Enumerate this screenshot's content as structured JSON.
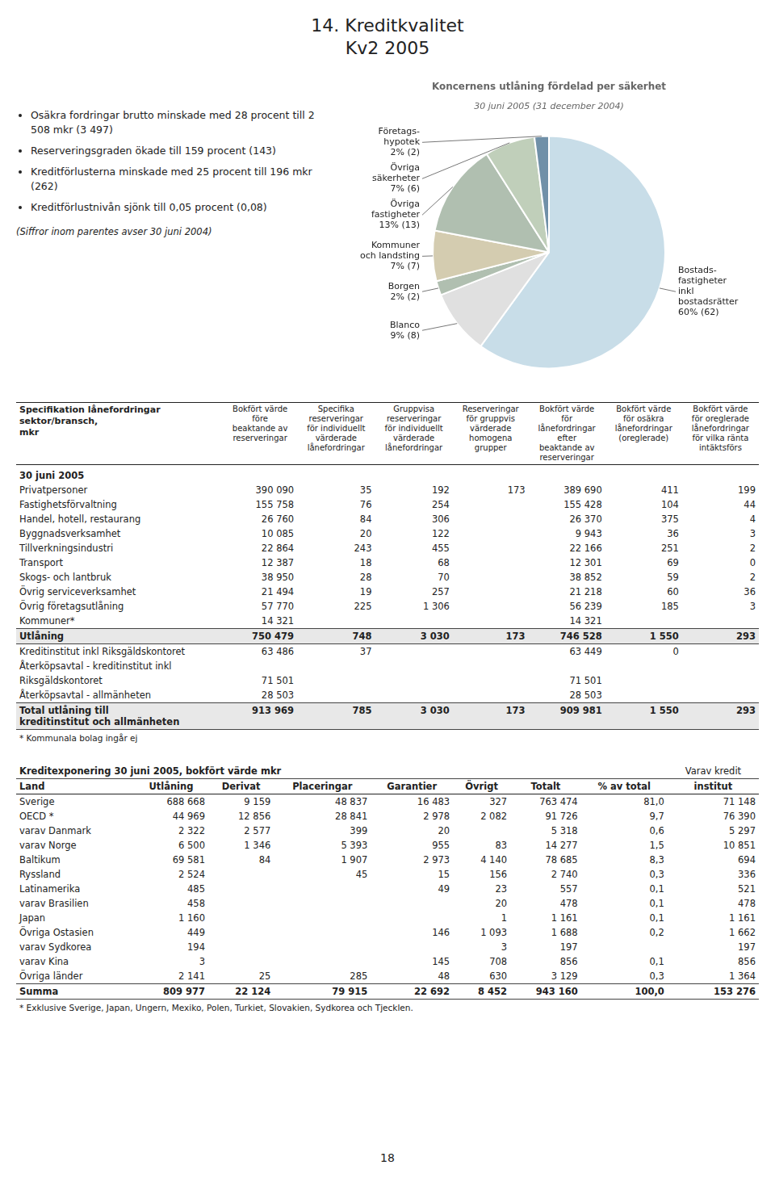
{
  "chart_data": {
    "type": "pie",
    "title": "Koncernens utlåning fördelad per säkerhet",
    "subtitle": "30 juni 2005 (31 december 2004)",
    "categories": [
      "Bostads-\nfastigheter\ninkl\nbostadsrätter",
      "Blanco",
      "Borgen",
      "Kommuner\noch landsting",
      "Övriga\nfastigheter",
      "Övriga\nsäkerheter",
      "Företags-\nhypotek"
    ],
    "values": [
      60,
      9,
      2,
      7,
      13,
      7,
      2
    ],
    "value_labels": [
      "60% (62)",
      "9% (8)",
      "2% (2)",
      "7% (7)",
      "13% (13)",
      "7% (6)",
      "2% (2)"
    ],
    "colors": [
      "#c8dde8",
      "#e0e0e0",
      "#b0bfb0",
      "#d4ccb0",
      "#b0bfb0",
      "#c0cfba",
      "#7090a8"
    ],
    "data_labels": true
  },
  "page": {
    "title": [
      "14. Kreditkvalitet",
      "Kv2 2005"
    ],
    "bullet_points": [
      "Osäkra fordringar brutto minskade med 28 procent till 2 508 mkr (3 497)",
      "Reserveringsgraden ökade till 159 procent (143)",
      "Kreditförlusterna minskade med 25 procent till 196 mkr (262)",
      "Kreditförlustnivån sjönk till 0,05 procent (0,08)"
    ],
    "footnote": "(Siffror inom parentes avser 30 juni 2004)",
    "table1": {
      "header_label": "Specifikation lånefordringar\nsektor/bransch,\nmkr",
      "headers": [
        "Bokfört värde\nföre\nbeaktande av\nreserveringar",
        "Specifika\nreserveringar\nför individuellt\nvärderade\nlånefordringar",
        "Gruppvisa\nreserveringar\nför individuellt\nvärderade\nlånefordringar",
        "Reserveringar\nför gruppvis\nvärderade\nhomogena\ngrupper",
        "Bokfört värde\nför\nlånefordringar\nefter\nbeaktande av\nreserveringar",
        "Bokfört värde\nför osäkra\nlånefordringar\n(oreglerade)",
        "Bokfört värde\nför oreglerade\nlånefordringar\nför vilka ränta\nintäktsförs"
      ],
      "section": "30 juni 2005",
      "rows": [
        [
          "Privatpersoner",
          "390 090",
          "35",
          "192",
          "173",
          "389 690",
          "411",
          "199"
        ],
        [
          "Fastighetsförvaltning",
          "155 758",
          "76",
          "254",
          "",
          "155 428",
          "104",
          "44"
        ],
        [
          "Handel, hotell, restaurang",
          "26 760",
          "84",
          "306",
          "",
          "26 370",
          "375",
          "4"
        ],
        [
          "Byggnadsverksamhet",
          "10 085",
          "20",
          "122",
          "",
          "9 943",
          "36",
          "3"
        ],
        [
          "Tillverkningsindustri",
          "22 864",
          "243",
          "455",
          "",
          "22 166",
          "251",
          "2"
        ],
        [
          "Transport",
          "12 387",
          "18",
          "68",
          "",
          "12 301",
          "69",
          "0"
        ],
        [
          "Skogs- och lantbruk",
          "38 950",
          "28",
          "70",
          "",
          "38 852",
          "59",
          "2"
        ],
        [
          "Övrig serviceverksamhet",
          "21 494",
          "19",
          "257",
          "",
          "21 218",
          "60",
          "36"
        ],
        [
          "Övrig företagsutlåning",
          "57 770",
          "225",
          "1 306",
          "",
          "56 239",
          "185",
          "3"
        ],
        [
          "Kommuner*",
          "14 321",
          "",
          "",
          "",
          "14 321",
          "",
          ""
        ]
      ],
      "total_row": [
        "Utlåning",
        "750 479",
        "748",
        "3 030",
        "173",
        "746 528",
        "1 550",
        "293"
      ],
      "rows2": [
        [
          "Kreditinstitut inkl Riksgäldskontoret",
          "63 486",
          "37",
          "",
          "",
          "63 449",
          "0",
          ""
        ],
        [
          "Återköpsavtal - kreditinstitut inkl",
          "",
          "",
          "",
          "",
          "",
          "",
          ""
        ],
        [
          "Riksgäldskontoret",
          "71 501",
          "",
          "",
          "",
          "71 501",
          "",
          ""
        ],
        [
          "Återköpsavtal - allmänheten",
          "28 503",
          "",
          "",
          "",
          "28 503",
          "",
          ""
        ]
      ],
      "total_row2_label": "Total utlåning till\nkreditinstitut och allmänheten",
      "total_row2": [
        "913 969",
        "785",
        "3 030",
        "173",
        "909 981",
        "1 550",
        "293"
      ],
      "footnote": "* Kommunala bolag ingår ej"
    },
    "table2": {
      "title": "Kreditexponering 30 juni 2005, bokfört värde mkr",
      "super_header": "Varav kredit",
      "headers": [
        "Land",
        "Utlåning",
        "Derivat",
        "Placeringar",
        "Garantier",
        "Övrigt",
        "Totalt",
        "% av total",
        "institut"
      ],
      "rows": [
        [
          "Sverige",
          "688 668",
          "9 159",
          "48 837",
          "16 483",
          "327",
          "763 474",
          "81,0",
          "71 148"
        ],
        [
          "OECD *",
          "44 969",
          "12 856",
          "28 841",
          "2 978",
          "2 082",
          "91 726",
          "9,7",
          "76 390"
        ],
        [
          "varav Danmark",
          "2 322",
          "2 577",
          "399",
          "20",
          "",
          "5 318",
          "0,6",
          "5 297"
        ],
        [
          "varav Norge",
          "6 500",
          "1 346",
          "5 393",
          "955",
          "83",
          "14 277",
          "1,5",
          "10 851"
        ],
        [
          "Baltikum",
          "69 581",
          "84",
          "1 907",
          "2 973",
          "4 140",
          "78 685",
          "8,3",
          "694"
        ],
        [
          "Ryssland",
          "2 524",
          "",
          "45",
          "15",
          "156",
          "2 740",
          "0,3",
          "336"
        ],
        [
          "Latinamerika",
          "485",
          "",
          "",
          "49",
          "23",
          "557",
          "0,1",
          "521"
        ],
        [
          "varav Brasilien",
          "458",
          "",
          "",
          "",
          "20",
          "478",
          "0,1",
          "478"
        ],
        [
          "Japan",
          "1 160",
          "",
          "",
          "",
          "1",
          "1 161",
          "0,1",
          "1 161"
        ],
        [
          "Övriga Ostasien",
          "449",
          "",
          "",
          "146",
          "1 093",
          "1 688",
          "0,2",
          "1 662"
        ],
        [
          "varav Sydkorea",
          "194",
          "",
          "",
          "",
          "3",
          "197",
          "",
          "197"
        ],
        [
          "varav Kina",
          "3",
          "",
          "",
          "145",
          "708",
          "856",
          "0,1",
          "856"
        ],
        [
          "Övriga länder",
          "2 141",
          "25",
          "285",
          "48",
          "630",
          "3 129",
          "0,3",
          "1 364"
        ]
      ],
      "total_row": [
        "Summa",
        "809 977",
        "22 124",
        "79 915",
        "22 692",
        "8 452",
        "943 160",
        "100,0",
        "153 276"
      ],
      "footnote": "* Exklusive Sverige, Japan, Ungern, Mexiko, Polen, Turkiet, Slovakien, Sydkorea och Tjecklen."
    },
    "page_number": "18"
  }
}
